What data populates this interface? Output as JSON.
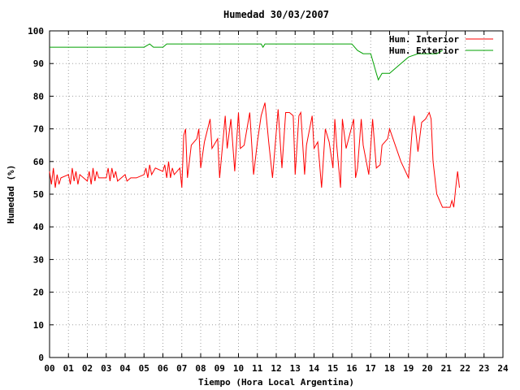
{
  "chart_data": {
    "type": "line",
    "title": "Humedad 30/03/2007",
    "xlabel": "Tiempo (Hora Local Argentina)",
    "ylabel": "Humedad (%)",
    "xlim": [
      0,
      24
    ],
    "ylim": [
      0,
      100
    ],
    "grid": true,
    "legend_position": "top-right",
    "x_ticks": [
      "00",
      "01",
      "02",
      "03",
      "04",
      "05",
      "06",
      "07",
      "08",
      "09",
      "10",
      "11",
      "12",
      "13",
      "14",
      "15",
      "16",
      "17",
      "18",
      "19",
      "20",
      "21",
      "22",
      "23",
      "24"
    ],
    "y_ticks": [
      "0",
      "10",
      "20",
      "30",
      "40",
      "50",
      "60",
      "70",
      "80",
      "90",
      "100"
    ],
    "series": [
      {
        "name": "Hum. Interior",
        "color": "#ff0000",
        "points": [
          [
            0.0,
            57
          ],
          [
            0.1,
            53
          ],
          [
            0.2,
            58
          ],
          [
            0.3,
            52
          ],
          [
            0.4,
            56
          ],
          [
            0.5,
            53
          ],
          [
            0.6,
            55
          ],
          [
            1.0,
            56
          ],
          [
            1.1,
            53
          ],
          [
            1.2,
            58
          ],
          [
            1.3,
            54
          ],
          [
            1.4,
            57
          ],
          [
            1.5,
            53
          ],
          [
            1.6,
            56
          ],
          [
            2.0,
            54
          ],
          [
            2.1,
            57
          ],
          [
            2.2,
            53
          ],
          [
            2.3,
            58
          ],
          [
            2.4,
            54
          ],
          [
            2.5,
            57
          ],
          [
            2.6,
            55
          ],
          [
            3.0,
            55
          ],
          [
            3.1,
            58
          ],
          [
            3.2,
            54
          ],
          [
            3.3,
            58
          ],
          [
            3.4,
            55
          ],
          [
            3.5,
            57
          ],
          [
            3.6,
            54
          ],
          [
            4.0,
            56
          ],
          [
            4.1,
            54
          ],
          [
            4.3,
            55
          ],
          [
            4.6,
            55
          ],
          [
            5.0,
            56
          ],
          [
            5.1,
            58
          ],
          [
            5.2,
            55
          ],
          [
            5.3,
            59
          ],
          [
            5.4,
            56
          ],
          [
            5.6,
            58
          ],
          [
            6.0,
            57
          ],
          [
            6.1,
            59
          ],
          [
            6.2,
            55
          ],
          [
            6.3,
            60
          ],
          [
            6.4,
            55
          ],
          [
            6.5,
            58
          ],
          [
            6.6,
            56
          ],
          [
            6.9,
            58
          ],
          [
            7.0,
            52
          ],
          [
            7.1,
            68
          ],
          [
            7.2,
            70
          ],
          [
            7.3,
            55
          ],
          [
            7.5,
            65
          ],
          [
            7.8,
            67
          ],
          [
            7.9,
            70
          ],
          [
            8.0,
            58
          ],
          [
            8.2,
            66
          ],
          [
            8.5,
            73
          ],
          [
            8.6,
            64
          ],
          [
            8.9,
            67
          ],
          [
            9.0,
            55
          ],
          [
            9.3,
            74
          ],
          [
            9.4,
            64
          ],
          [
            9.6,
            73
          ],
          [
            9.8,
            57
          ],
          [
            10.0,
            75
          ],
          [
            10.1,
            64
          ],
          [
            10.3,
            65
          ],
          [
            10.6,
            75
          ],
          [
            10.8,
            56
          ],
          [
            11.0,
            66
          ],
          [
            11.2,
            74
          ],
          [
            11.4,
            78
          ],
          [
            11.6,
            66
          ],
          [
            11.8,
            55
          ],
          [
            12.1,
            76
          ],
          [
            12.3,
            58
          ],
          [
            12.5,
            75
          ],
          [
            12.7,
            75
          ],
          [
            12.9,
            74
          ],
          [
            13.0,
            56
          ],
          [
            13.2,
            74
          ],
          [
            13.3,
            75
          ],
          [
            13.5,
            56
          ],
          [
            13.6,
            65
          ],
          [
            13.9,
            74
          ],
          [
            14.0,
            64
          ],
          [
            14.2,
            66
          ],
          [
            14.4,
            52
          ],
          [
            14.6,
            70
          ],
          [
            14.8,
            66
          ],
          [
            15.0,
            58
          ],
          [
            15.1,
            73
          ],
          [
            15.2,
            65
          ],
          [
            15.4,
            52
          ],
          [
            15.5,
            73
          ],
          [
            15.7,
            64
          ],
          [
            16.1,
            73
          ],
          [
            16.2,
            55
          ],
          [
            16.3,
            58
          ],
          [
            16.5,
            73
          ],
          [
            16.6,
            65
          ],
          [
            16.9,
            56
          ],
          [
            17.1,
            73
          ],
          [
            17.3,
            58
          ],
          [
            17.5,
            59
          ],
          [
            17.6,
            65
          ],
          [
            17.9,
            67
          ],
          [
            18.0,
            70
          ],
          [
            18.6,
            60
          ],
          [
            19.0,
            55
          ],
          [
            19.2,
            70
          ],
          [
            19.3,
            74
          ],
          [
            19.5,
            63
          ],
          [
            19.7,
            72
          ],
          [
            19.9,
            73
          ],
          [
            20.1,
            75
          ],
          [
            20.2,
            73
          ],
          [
            20.3,
            60
          ],
          [
            20.5,
            50
          ],
          [
            20.8,
            46
          ],
          [
            21.0,
            46
          ],
          [
            21.2,
            46
          ],
          [
            21.3,
            48
          ],
          [
            21.4,
            46
          ],
          [
            21.5,
            52
          ],
          [
            21.6,
            57
          ],
          [
            21.7,
            52
          ]
        ]
      },
      {
        "name": "Hum. Exterior",
        "color": "#00a000",
        "points": [
          [
            0.0,
            95
          ],
          [
            1.0,
            95
          ],
          [
            2.0,
            95
          ],
          [
            3.0,
            95
          ],
          [
            4.0,
            95
          ],
          [
            5.0,
            95
          ],
          [
            5.3,
            96
          ],
          [
            5.5,
            95
          ],
          [
            6.0,
            95
          ],
          [
            6.2,
            96
          ],
          [
            7.0,
            96
          ],
          [
            8.0,
            96
          ],
          [
            9.0,
            96
          ],
          [
            10.0,
            96
          ],
          [
            11.2,
            96
          ],
          [
            11.3,
            95
          ],
          [
            11.4,
            96
          ],
          [
            12.0,
            96
          ],
          [
            13.0,
            96
          ],
          [
            14.0,
            96
          ],
          [
            15.0,
            96
          ],
          [
            16.0,
            96
          ],
          [
            16.3,
            94
          ],
          [
            16.6,
            93
          ],
          [
            17.0,
            93
          ],
          [
            17.3,
            87
          ],
          [
            17.4,
            85
          ],
          [
            17.6,
            87
          ],
          [
            18.0,
            87
          ],
          [
            18.6,
            90
          ],
          [
            19.0,
            92
          ],
          [
            19.5,
            93
          ],
          [
            20.0,
            93
          ],
          [
            20.5,
            93
          ],
          [
            20.8,
            94
          ]
        ]
      }
    ]
  }
}
